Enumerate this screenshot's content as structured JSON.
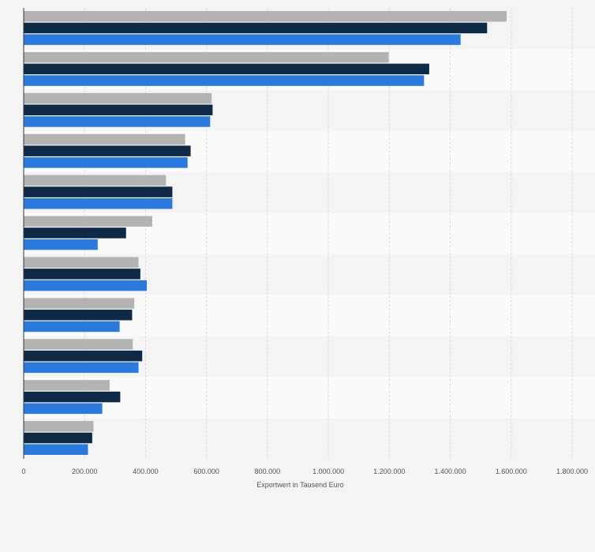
{
  "colors": {
    "background": "#f4f4f4",
    "band_even": "#f4f4f4",
    "band_odd": "#fafafa",
    "gridline": "#dcdcdc",
    "axis": "#333333",
    "tick_text": "#555555"
  },
  "chart_data": {
    "type": "bar",
    "orientation": "horizontal",
    "title": "",
    "xlabel": "Exportwert in Tausend Euro",
    "ylabel": "",
    "xlim": [
      0,
      1800000
    ],
    "grid": true,
    "legend": "none",
    "tick_values": [
      0,
      200000,
      400000,
      600000,
      800000,
      1000000,
      1200000,
      1400000,
      1600000,
      1800000
    ],
    "tick_labels": [
      "0",
      "200.000",
      "400.000",
      "600.000",
      "800.000",
      "1.000.000",
      "1.200.000",
      "1.400.000",
      "1.600.000",
      "1.800.000"
    ],
    "categories": [
      "",
      "",
      "",
      "",
      "",
      "",
      "",
      "",
      "",
      "",
      ""
    ],
    "series": [
      {
        "color": "#b3b3b3",
        "values": [
          1585000,
          1198000,
          617000,
          530000,
          467000,
          422000,
          377000,
          363000,
          358000,
          282000,
          229000
        ]
      },
      {
        "color": "#0f2a47",
        "values": [
          1521000,
          1331000,
          620000,
          548000,
          488000,
          336000,
          383000,
          356000,
          389000,
          317000,
          225000
        ]
      },
      {
        "color": "#2a7ade",
        "values": [
          1434000,
          1314000,
          612000,
          538000,
          488000,
          243000,
          404000,
          315000,
          377000,
          258000,
          211000
        ]
      }
    ]
  }
}
